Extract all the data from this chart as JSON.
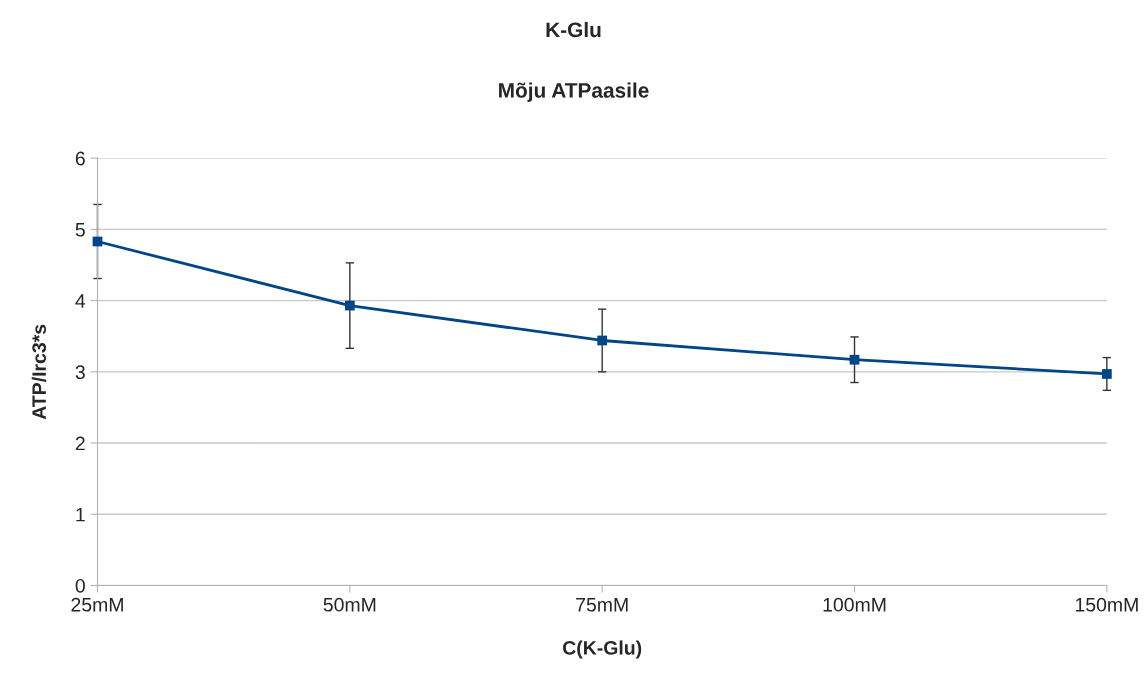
{
  "chart_data": {
    "type": "line",
    "title": "K-Glu",
    "subtitle": "Mõju ATPaasile",
    "xlabel": "C(K-Glu)",
    "ylabel": "ATP/Irc3*s",
    "categories": [
      "25mM",
      "50mM",
      "75mM",
      "100mM",
      "150mM"
    ],
    "series": [
      {
        "color": "#004586",
        "values": [
          4.83,
          3.93,
          3.44,
          3.17,
          2.97
        ],
        "errors": [
          0.52,
          0.6,
          0.44,
          0.32,
          0.23
        ]
      }
    ],
    "ylim": [
      0,
      6
    ],
    "yticks": [
      0,
      1,
      2,
      3,
      4,
      5,
      6
    ],
    "grid": "y",
    "marker": "square",
    "line_style": "solid",
    "legend": false
  }
}
